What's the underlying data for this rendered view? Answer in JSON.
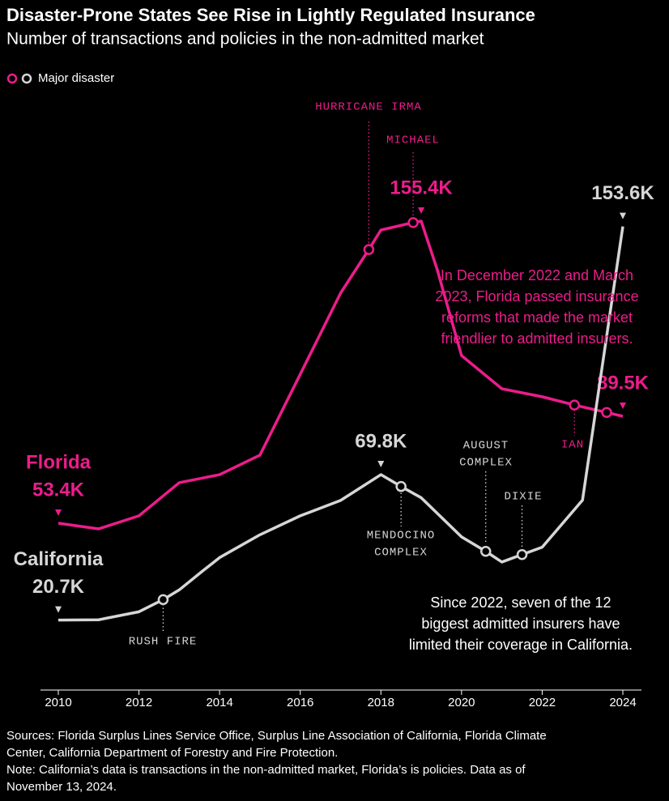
{
  "chart_data": {
    "type": "line",
    "title": "Disaster-Prone States See Rise in Lightly Regulated Insurance",
    "subtitle": "Number of transactions and policies in the non-admitted market",
    "marker_legend": "Major disaster",
    "xlim": [
      2010,
      2024
    ],
    "xticks": [
      2010,
      2012,
      2014,
      2016,
      2018,
      2020,
      2022,
      2024
    ],
    "ylim": [
      0,
      160
    ],
    "series": [
      {
        "name": "Florida",
        "color": "#ec1c8b",
        "x": [
          2010,
          2011,
          2012,
          2013,
          2014,
          2015,
          2016,
          2017,
          2017.7,
          2018,
          2018.8,
          2019,
          2019.4,
          2020,
          2021,
          2022,
          2022.8,
          2023.6,
          2024
        ],
        "values": [
          53.4,
          51.5,
          55.9,
          67.1,
          69.8,
          76.4,
          103.7,
          131.1,
          145.8,
          152.4,
          154.9,
          155.4,
          138.9,
          110,
          98.8,
          96.1,
          93.3,
          90.8,
          89.5
        ],
        "value_labels": [
          "53.4K",
          null,
          null,
          null,
          null,
          null,
          null,
          null,
          null,
          null,
          null,
          "155.4K",
          null,
          null,
          null,
          null,
          null,
          null,
          "89.5K"
        ],
        "events": [
          {
            "x": 2017.7,
            "value": 145.8,
            "label": [
              "HURRICANE IRMA"
            ]
          },
          {
            "x": 2018.8,
            "value": 154.9,
            "label": [
              "MICHAEL"
            ]
          },
          {
            "x": 2022.8,
            "value": 93.3,
            "label": [
              "IAN"
            ]
          },
          {
            "x": 2023.6,
            "value": 90.8
          }
        ]
      },
      {
        "name": "California",
        "color": "#d6d6d6",
        "x": [
          2010,
          2011,
          2012,
          2012.6,
          2013,
          2013.6,
          2014,
          2015,
          2016,
          2017,
          2018,
          2018.5,
          2019,
          2020,
          2020.6,
          2021,
          2021.5,
          2022,
          2023,
          2024
        ],
        "values": [
          20.7,
          20.8,
          23.5,
          27.6,
          30.9,
          37.5,
          41.8,
          49.5,
          55.9,
          61.1,
          69.8,
          65.8,
          62.0,
          48.8,
          43.9,
          40.3,
          42.8,
          45.3,
          61.2,
          153.6
        ],
        "value_labels": [
          "20.7K",
          null,
          null,
          null,
          null,
          null,
          null,
          null,
          null,
          null,
          "69.8K",
          null,
          null,
          null,
          null,
          null,
          null,
          null,
          null,
          "153.6K"
        ],
        "events": [
          {
            "x": 2012.6,
            "value": 27.6,
            "label": [
              "RUSH FIRE"
            ]
          },
          {
            "x": 2018.5,
            "value": 65.8,
            "label": [
              "MENDOCINO",
              "COMPLEX"
            ]
          },
          {
            "x": 2020.6,
            "value": 43.9,
            "label": [
              "AUGUST",
              "COMPLEX"
            ]
          },
          {
            "x": 2021.5,
            "value": 42.8,
            "label": [
              "DIXIE"
            ]
          }
        ]
      }
    ],
    "annotations": [
      [
        "In December 2022 and March",
        "2023, Florida passed insurance",
        "reforms that made the market",
        "friendlier to admitted insurers."
      ],
      [
        "Since 2022, seven of the 12",
        "biggest admitted insurers have",
        "limited their coverage in California."
      ]
    ],
    "footer": [
      "Sources: Florida Surplus Lines Service Office, Surplus Line Association of California, Florida Climate",
      "Center, California Department of Forestry and Fire Protection.",
      "Note: California’s data is transactions in the non-admitted market, Florida’s is policies. Data as of",
      "November 13, 2024."
    ]
  }
}
